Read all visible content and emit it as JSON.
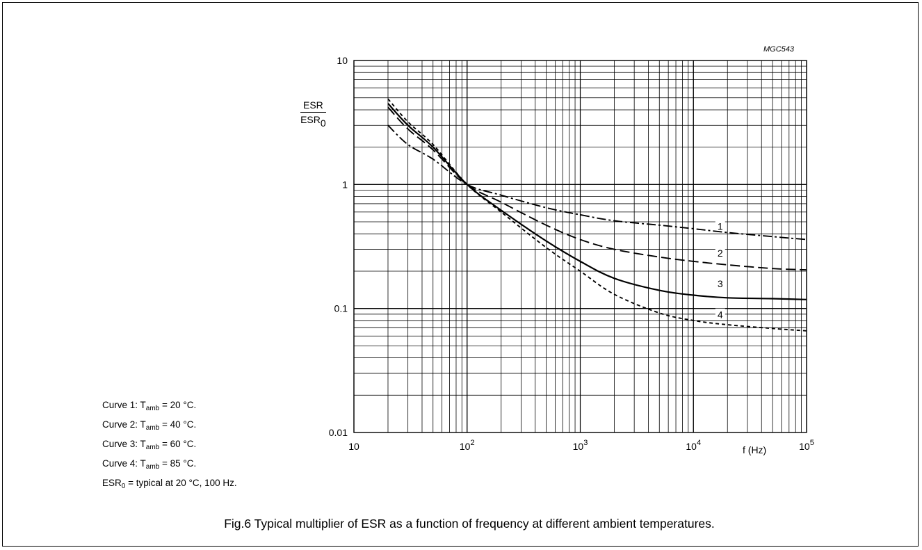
{
  "figure_code": "MGC543",
  "caption": "Fig.6  Typical multiplier of ESR as a function of frequency at different ambient temperatures.",
  "notes": [
    {
      "pre": "Curve 1: T",
      "sub": "amb",
      "post": " = 20 °C."
    },
    {
      "pre": "Curve 2: T",
      "sub": "amb",
      "post": " = 40 °C."
    },
    {
      "pre": "Curve 3: T",
      "sub": "amb",
      "post": " = 60 °C."
    },
    {
      "pre": "Curve 4: T",
      "sub": "amb",
      "post": " = 85 °C."
    },
    {
      "pre": "ESR",
      "sub": "0",
      "post": " = typical at 20 °C, 100 Hz."
    }
  ],
  "chart_data": {
    "type": "line",
    "xscale": "log",
    "yscale": "log",
    "xlim": [
      10,
      100000
    ],
    "ylim": [
      0.01,
      10
    ],
    "grid": true,
    "ylabel": {
      "numerator": "ESR",
      "denominator": "ESR",
      "denominator_sub": "0"
    },
    "xlabel": "f (Hz)",
    "x_ticks": [
      {
        "value": 10,
        "base": "10",
        "exp": ""
      },
      {
        "value": 100,
        "base": "10",
        "exp": "2"
      },
      {
        "value": 1000,
        "base": "10",
        "exp": "3"
      },
      {
        "value": 10000,
        "base": "10",
        "exp": "4"
      },
      {
        "value": 100000,
        "base": "10",
        "exp": "5"
      }
    ],
    "y_ticks": [
      {
        "value": 10,
        "label": "10"
      },
      {
        "value": 1,
        "label": "1"
      },
      {
        "value": 0.1,
        "label": "0.1"
      },
      {
        "value": 0.01,
        "label": "0.01"
      }
    ],
    "series": [
      {
        "name": "1",
        "dash": "dashdot",
        "x": [
          20,
          30,
          50,
          100,
          200,
          500,
          1000,
          2000,
          5000,
          10000,
          20000,
          50000,
          100000
        ],
        "y": [
          3.0,
          2.1,
          1.6,
          1.0,
          0.82,
          0.65,
          0.57,
          0.51,
          0.47,
          0.44,
          0.41,
          0.38,
          0.36
        ]
      },
      {
        "name": "2",
        "dash": "longdash",
        "x": [
          20,
          30,
          50,
          100,
          200,
          500,
          1000,
          2000,
          5000,
          10000,
          20000,
          50000,
          100000
        ],
        "y": [
          4.2,
          2.8,
          1.9,
          1.0,
          0.72,
          0.47,
          0.36,
          0.3,
          0.26,
          0.24,
          0.225,
          0.21,
          0.205
        ]
      },
      {
        "name": "3",
        "dash": "solid",
        "x": [
          20,
          30,
          50,
          100,
          200,
          500,
          1000,
          2000,
          5000,
          10000,
          20000,
          50000,
          100000
        ],
        "y": [
          4.5,
          3.0,
          2.0,
          1.0,
          0.62,
          0.35,
          0.24,
          0.175,
          0.14,
          0.128,
          0.122,
          0.12,
          0.118
        ]
      },
      {
        "name": "4",
        "dash": "shortdash",
        "x": [
          20,
          30,
          50,
          100,
          200,
          500,
          1000,
          2000,
          5000,
          10000,
          20000,
          50000,
          100000
        ],
        "y": [
          4.9,
          3.2,
          2.1,
          1.0,
          0.6,
          0.31,
          0.2,
          0.13,
          0.092,
          0.08,
          0.074,
          0.069,
          0.066
        ]
      }
    ],
    "curve_labels": [
      {
        "text": "1",
        "x": 17000,
        "y": 0.46
      },
      {
        "text": "2",
        "x": 17000,
        "y": 0.28
      },
      {
        "text": "3",
        "x": 17000,
        "y": 0.158
      },
      {
        "text": "4",
        "x": 17000,
        "y": 0.089
      }
    ]
  }
}
